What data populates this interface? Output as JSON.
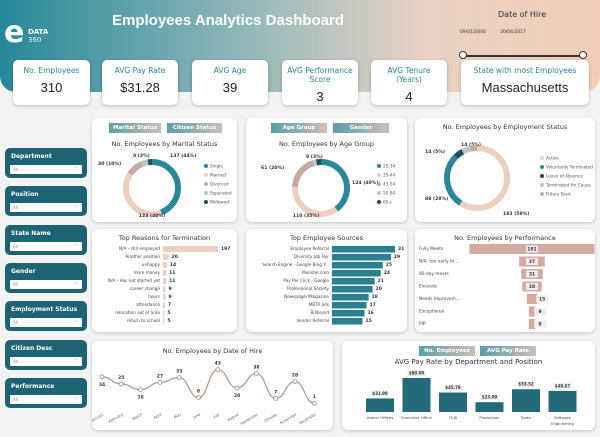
{
  "header": {
    "title": "Employees Analytics Dashboard",
    "logo_main": "DATA",
    "logo_sub": "360",
    "logo_letter": "e",
    "date_filter": {
      "label": "Date of Hire",
      "start": "09/01/2006",
      "end": "20/04/2017"
    }
  },
  "kpis": [
    {
      "label": "No. Employees",
      "value": "310"
    },
    {
      "label": "AVG Pay Rate",
      "value": "$31.28"
    },
    {
      "label": "AVG  Age",
      "value": "39"
    },
    {
      "label": "AVG Performance Score",
      "value": "3"
    },
    {
      "label": "AVG Tenure (Years)",
      "value": "4"
    },
    {
      "label": "State with most Employees",
      "value": "Massachusetts"
    }
  ],
  "slicers": [
    {
      "label": "Department",
      "value": "All"
    },
    {
      "label": "Position",
      "value": "All"
    },
    {
      "label": "State Name",
      "value": "All"
    },
    {
      "label": "Gender",
      "value": "All"
    },
    {
      "label": "Employment Status",
      "value": "All"
    },
    {
      "label": "Citizen Desc",
      "value": "All"
    },
    {
      "label": "Performance",
      "value": "All"
    }
  ],
  "colors": {
    "teal": "#2a8797",
    "peach": "#e8c9b6",
    "dark": "#1e5f6c",
    "grey": "#b9c7c8",
    "mauve": "#c9a9a2",
    "line": "#b39a8a",
    "bar": "#236b7a",
    "perf": "#d4a9a0"
  },
  "toggles": {
    "marital": [
      "Marital Status",
      "Citizen Status"
    ],
    "age": [
      "Age Group",
      "Gender"
    ],
    "pay": [
      "No. Employees",
      "AVG Pay Rate"
    ]
  },
  "chart_data": [
    {
      "type": "pie",
      "title": "No. Employees by Marital Status",
      "categories": [
        "Single",
        "Married",
        "Divorced",
        "Separated",
        "Widowed"
      ],
      "values": [
        137,
        123,
        30,
        12,
        8
      ],
      "labels": [
        "137 (44%)",
        "123 (40%)",
        "30 (10%)",
        "",
        "8 (3%)"
      ],
      "colors": [
        "#2a8797",
        "#ecd0bf",
        "#c5aaa3",
        "#b9c7c8",
        "#1d4f58"
      ]
    },
    {
      "type": "pie",
      "title": "No. Employees by Age Group",
      "categories": [
        "25-34",
        "35-44",
        "45-54",
        "55-64",
        "65+"
      ],
      "values": [
        124,
        110,
        61,
        6,
        9
      ],
      "labels": [
        "124 (40%)",
        "110 (35%)",
        "61 (20%)",
        "",
        "9 (3%)"
      ],
      "colors": [
        "#2a8797",
        "#ecd0bf",
        "#c5aaa3",
        "#b9c7c8",
        "#1d4f58"
      ]
    },
    {
      "type": "pie",
      "title": "No. Employees by Employment Status",
      "categories": [
        "Active",
        "Voluntarily Terminated",
        "Leave of Absence",
        "Terminated for Cause",
        "Future Start"
      ],
      "values": [
        183,
        88,
        14,
        14,
        11
      ],
      "labels": [
        "183 (59%)",
        "88 (28%)",
        "14 (5%)",
        "14 (5%)",
        ""
      ],
      "colors": [
        "#ecd0bf",
        "#2a8797",
        "#1d4f58",
        "#b9c7c8",
        "#c5aaa3"
      ]
    },
    {
      "type": "bar",
      "title": "Top Reasons for Termination",
      "categories": [
        "N/A - still employed",
        "Another position",
        "unhappy",
        "more money",
        "N/A - Has not started yet",
        "career change",
        "hours",
        "attendance",
        "relocation out of area",
        "return to school"
      ],
      "values": [
        197,
        20,
        14,
        11,
        11,
        9,
        9,
        7,
        5,
        5
      ]
    },
    {
      "type": "bar",
      "title": "Top Employee Sources",
      "categories": [
        "Employee Referral",
        "Diversity Job Fair",
        "Search Engine - Google Bing Y...",
        "Monster.com",
        "Pay Per Click - Google",
        "Professional Society",
        "Newspager/Magazine",
        "MBTA ads",
        "Billboard",
        "Vendor Referral"
      ],
      "values": [
        31,
        29,
        25,
        24,
        21,
        20,
        18,
        17,
        16,
        15
      ]
    },
    {
      "type": "bar",
      "title": "No. Employees by Performance",
      "categories": [
        "Fully Meets",
        "N/A- too early to ...",
        "90-day meets",
        "Exceeds",
        "Needs Improvem...",
        "Exceptional",
        "PIP"
      ],
      "values": [
        181,
        37,
        31,
        28,
        15,
        9,
        9
      ]
    },
    {
      "type": "line",
      "title": "No. Employees by Date of Hire",
      "categories": [
        "January",
        "February",
        "March",
        "April",
        "May",
        "June",
        "July",
        "August",
        "September",
        "October",
        "November",
        "December"
      ],
      "values": [
        34,
        25,
        18,
        27,
        33,
        8,
        43,
        20,
        38,
        7,
        28,
        1
      ]
    },
    {
      "type": "bar",
      "title": "AVG Pay Rate by Department and Position",
      "categories": [
        "Admin Offices",
        "Executive Office",
        "IT/IS",
        "Production",
        "Sales",
        "Software Engineering"
      ],
      "values": [
        31.9,
        80.0,
        45.79,
        23.09,
        53.52,
        49.67
      ],
      "labels": [
        "$31.90",
        "$80.00",
        "$45.79",
        "$23.09",
        "$53.52",
        "$49.67"
      ]
    }
  ]
}
